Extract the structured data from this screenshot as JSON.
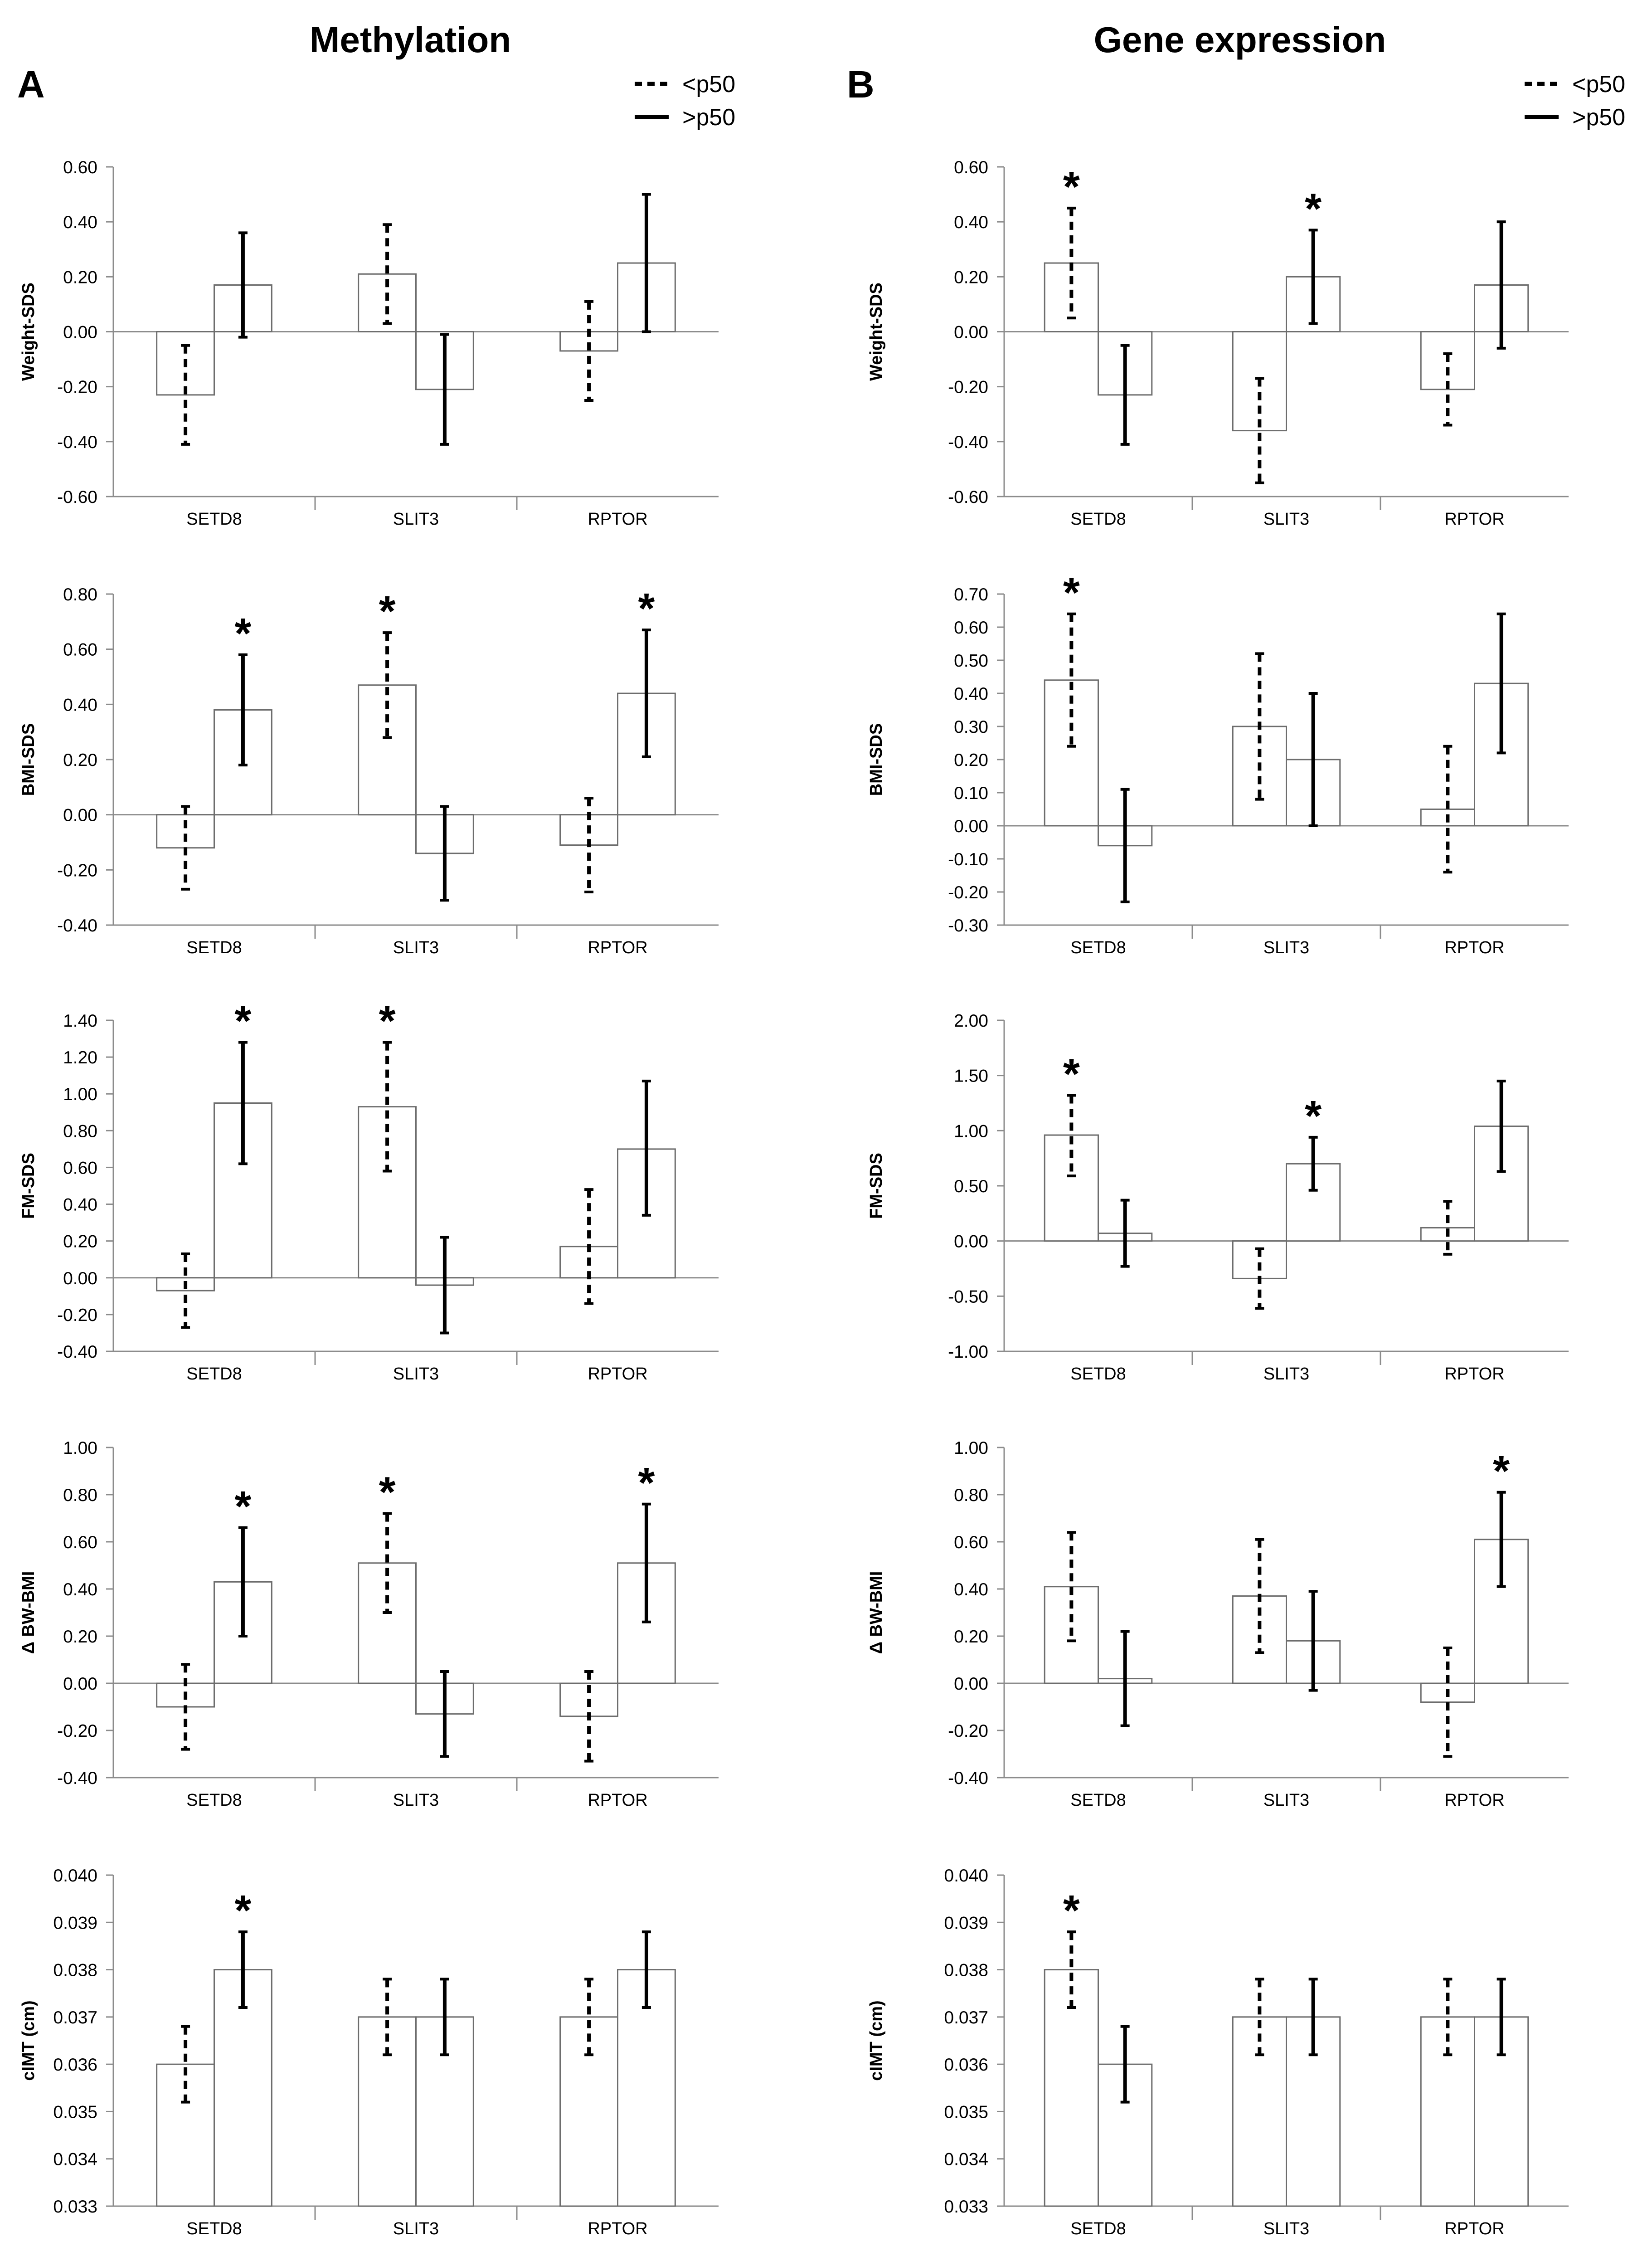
{
  "figure": {
    "columns": [
      {
        "letter": "A",
        "title": "Methylation"
      },
      {
        "letter": "B",
        "title": "Gene expression"
      }
    ],
    "legend": {
      "below": "<p50",
      "above": ">p50"
    },
    "significance_marker": "*"
  },
  "chart_data": [
    {
      "type": "bar",
      "panel": "A",
      "row": 1,
      "ylabel": "Weight-SDS",
      "categories": [
        "SETD8",
        "SLIT3",
        "RPTOR"
      ],
      "ylim": [
        -0.6,
        0.6
      ],
      "ytick_step": 0.2,
      "ytick_decimals": 2,
      "yticks": [
        "0.60",
        "0.40",
        "0.20",
        "0.00",
        "-0.20",
        "-0.40",
        "-0.60"
      ],
      "series": [
        {
          "name": "<p50",
          "style": "dashed",
          "values": [
            -0.23,
            0.21,
            -0.07
          ],
          "error_low": [
            -0.41,
            0.03,
            -0.25
          ],
          "error_high": [
            -0.05,
            0.39,
            0.11
          ],
          "significant": [
            false,
            false,
            false
          ]
        },
        {
          "name": ">p50",
          "style": "solid",
          "values": [
            0.17,
            -0.21,
            0.25
          ],
          "error_low": [
            -0.02,
            -0.41,
            0.0
          ],
          "error_high": [
            0.36,
            -0.01,
            0.5
          ],
          "significant": [
            false,
            false,
            false
          ]
        }
      ]
    },
    {
      "type": "bar",
      "panel": "B",
      "row": 1,
      "ylabel": "Weight-SDS",
      "categories": [
        "SETD8",
        "SLIT3",
        "RPTOR"
      ],
      "ylim": [
        -0.6,
        0.6
      ],
      "ytick_step": 0.2,
      "ytick_decimals": 2,
      "yticks": [
        "0.60",
        "0.40",
        "0.20",
        "0.00",
        "-0.20",
        "-0.40",
        "-0.60"
      ],
      "series": [
        {
          "name": "<p50",
          "style": "dashed",
          "values": [
            0.25,
            -0.36,
            -0.21
          ],
          "error_low": [
            0.05,
            -0.55,
            -0.34
          ],
          "error_high": [
            0.45,
            -0.17,
            -0.08
          ],
          "significant": [
            true,
            false,
            false
          ]
        },
        {
          "name": ">p50",
          "style": "solid",
          "values": [
            -0.23,
            0.2,
            0.17
          ],
          "error_low": [
            -0.41,
            0.03,
            -0.06
          ],
          "error_high": [
            -0.05,
            0.37,
            0.4
          ],
          "significant": [
            false,
            true,
            false
          ]
        }
      ]
    },
    {
      "type": "bar",
      "panel": "A",
      "row": 2,
      "ylabel": "BMI-SDS",
      "categories": [
        "SETD8",
        "SLIT3",
        "RPTOR"
      ],
      "ylim": [
        -0.4,
        0.8
      ],
      "ytick_step": 0.2,
      "ytick_decimals": 2,
      "yticks": [
        "0.80",
        "0.60",
        "0.40",
        "0.20",
        "0.00",
        "-0.20",
        "-0.40"
      ],
      "series": [
        {
          "name": "<p50",
          "style": "dashed",
          "values": [
            -0.12,
            0.47,
            -0.11
          ],
          "error_low": [
            -0.27,
            0.28,
            -0.28
          ],
          "error_high": [
            0.03,
            0.66,
            0.06
          ],
          "significant": [
            false,
            true,
            false
          ]
        },
        {
          "name": ">p50",
          "style": "solid",
          "values": [
            0.38,
            -0.14,
            0.44
          ],
          "error_low": [
            0.18,
            -0.31,
            0.21
          ],
          "error_high": [
            0.58,
            0.03,
            0.67
          ],
          "significant": [
            true,
            false,
            true
          ]
        }
      ]
    },
    {
      "type": "bar",
      "panel": "B",
      "row": 2,
      "ylabel": "BMI-SDS",
      "categories": [
        "SETD8",
        "SLIT3",
        "RPTOR"
      ],
      "ylim": [
        -0.3,
        0.7
      ],
      "ytick_step": 0.1,
      "ytick_decimals": 2,
      "yticks": [
        "0.70",
        "0.60",
        "0.50",
        "0.40",
        "0.30",
        "0.20",
        "0.10",
        "0.00",
        "-0.10",
        "-0.20",
        "-0.30"
      ],
      "series": [
        {
          "name": "<p50",
          "style": "dashed",
          "values": [
            0.44,
            0.3,
            0.05
          ],
          "error_low": [
            0.24,
            0.08,
            -0.14
          ],
          "error_high": [
            0.64,
            0.52,
            0.24
          ],
          "significant": [
            true,
            false,
            false
          ]
        },
        {
          "name": ">p50",
          "style": "solid",
          "values": [
            -0.06,
            0.2,
            0.43
          ],
          "error_low": [
            -0.23,
            0.0,
            0.22
          ],
          "error_high": [
            0.11,
            0.4,
            0.64
          ],
          "significant": [
            false,
            false,
            false
          ]
        }
      ]
    },
    {
      "type": "bar",
      "panel": "A",
      "row": 3,
      "ylabel": "FM-SDS",
      "categories": [
        "SETD8",
        "SLIT3",
        "RPTOR"
      ],
      "ylim": [
        -0.4,
        1.4
      ],
      "ytick_step": 0.2,
      "ytick_decimals": 2,
      "yticks": [
        "1.40",
        "1.20",
        "1.00",
        "0.80",
        "0.60",
        "0.40",
        "0.20",
        "0.00",
        "-0.20",
        "-0.40"
      ],
      "series": [
        {
          "name": "<p50",
          "style": "dashed",
          "values": [
            -0.07,
            0.93,
            0.17
          ],
          "error_low": [
            -0.27,
            0.58,
            -0.14
          ],
          "error_high": [
            0.13,
            1.28,
            0.48
          ],
          "significant": [
            false,
            true,
            false
          ]
        },
        {
          "name": ">p50",
          "style": "solid",
          "values": [
            0.95,
            -0.04,
            0.7
          ],
          "error_low": [
            0.62,
            -0.3,
            0.34
          ],
          "error_high": [
            1.28,
            0.22,
            1.07
          ],
          "significant": [
            true,
            false,
            false
          ]
        }
      ]
    },
    {
      "type": "bar",
      "panel": "B",
      "row": 3,
      "ylabel": "FM-SDS",
      "categories": [
        "SETD8",
        "SLIT3",
        "RPTOR"
      ],
      "ylim": [
        -1.0,
        2.0
      ],
      "ytick_step": 0.5,
      "ytick_decimals": 2,
      "yticks": [
        "2.00",
        "1.50",
        "1.00",
        "0.50",
        "0.00",
        "-0.50",
        "-1.00"
      ],
      "series": [
        {
          "name": "<p50",
          "style": "dashed",
          "values": [
            0.96,
            -0.34,
            0.12
          ],
          "error_low": [
            0.59,
            -0.61,
            -0.12
          ],
          "error_high": [
            1.32,
            -0.07,
            0.36
          ],
          "significant": [
            true,
            false,
            false
          ]
        },
        {
          "name": ">p50",
          "style": "solid",
          "values": [
            0.07,
            0.7,
            1.04
          ],
          "error_low": [
            -0.23,
            0.46,
            0.63
          ],
          "error_high": [
            0.37,
            0.94,
            1.45
          ],
          "significant": [
            false,
            true,
            false
          ]
        }
      ]
    },
    {
      "type": "bar",
      "panel": "A",
      "row": 4,
      "ylabel": "Δ BW-BMI",
      "categories": [
        "SETD8",
        "SLIT3",
        "RPTOR"
      ],
      "ylim": [
        -0.4,
        1.0
      ],
      "ytick_step": 0.2,
      "ytick_decimals": 2,
      "yticks": [
        "1.00",
        "0.80",
        "0.60",
        "0.40",
        "0.20",
        "0.00",
        "-0.20",
        "-0.40"
      ],
      "series": [
        {
          "name": "<p50",
          "style": "dashed",
          "values": [
            -0.1,
            0.51,
            -0.14
          ],
          "error_low": [
            -0.28,
            0.3,
            -0.33
          ],
          "error_high": [
            0.08,
            0.72,
            0.05
          ],
          "significant": [
            false,
            true,
            false
          ]
        },
        {
          "name": ">p50",
          "style": "solid",
          "values": [
            0.43,
            -0.13,
            0.51
          ],
          "error_low": [
            0.2,
            -0.31,
            0.26
          ],
          "error_high": [
            0.66,
            0.05,
            0.76
          ],
          "significant": [
            true,
            false,
            true
          ]
        }
      ]
    },
    {
      "type": "bar",
      "panel": "B",
      "row": 4,
      "ylabel": "Δ BW-BMI",
      "categories": [
        "SETD8",
        "SLIT3",
        "RPTOR"
      ],
      "ylim": [
        -0.4,
        1.0
      ],
      "ytick_step": 0.2,
      "ytick_decimals": 2,
      "yticks": [
        "1.00",
        "0.80",
        "0.60",
        "0.40",
        "0.20",
        "0.00",
        "-0.20",
        "-0.40"
      ],
      "series": [
        {
          "name": "<p50",
          "style": "dashed",
          "values": [
            0.41,
            0.37,
            -0.08
          ],
          "error_low": [
            0.18,
            0.13,
            -0.31
          ],
          "error_high": [
            0.64,
            0.61,
            0.15
          ],
          "significant": [
            false,
            false,
            false
          ]
        },
        {
          "name": ">p50",
          "style": "solid",
          "values": [
            0.02,
            0.18,
            0.61
          ],
          "error_low": [
            -0.18,
            -0.03,
            0.41
          ],
          "error_high": [
            0.22,
            0.39,
            0.81
          ],
          "significant": [
            false,
            false,
            true
          ]
        }
      ]
    },
    {
      "type": "bar",
      "panel": "A",
      "row": 5,
      "ylabel": "cIMT (cm)",
      "categories": [
        "SETD8",
        "SLIT3",
        "RPTOR"
      ],
      "ylim": [
        0.033,
        0.04
      ],
      "ytick_step": 0.001,
      "ytick_decimals": 3,
      "yticks": [
        "0.040",
        "0.039",
        "0.038",
        "0.037",
        "0.036",
        "0.035",
        "0.034",
        "0.033"
      ],
      "series": [
        {
          "name": "<p50",
          "style": "dashed",
          "values": [
            0.036,
            0.037,
            0.037
          ],
          "error_low": [
            0.0352,
            0.0362,
            0.0362
          ],
          "error_high": [
            0.0368,
            0.0378,
            0.0378
          ],
          "significant": [
            false,
            false,
            false
          ]
        },
        {
          "name": ">p50",
          "style": "solid",
          "values": [
            0.038,
            0.037,
            0.038
          ],
          "error_low": [
            0.0372,
            0.0362,
            0.0372
          ],
          "error_high": [
            0.0388,
            0.0378,
            0.0388
          ],
          "significant": [
            true,
            false,
            false
          ]
        }
      ]
    },
    {
      "type": "bar",
      "panel": "B",
      "row": 5,
      "ylabel": "cIMT (cm)",
      "categories": [
        "SETD8",
        "SLIT3",
        "RPTOR"
      ],
      "ylim": [
        0.033,
        0.04
      ],
      "ytick_step": 0.001,
      "ytick_decimals": 3,
      "yticks": [
        "0.040",
        "0.039",
        "0.038",
        "0.037",
        "0.036",
        "0.035",
        "0.034",
        "0.033"
      ],
      "series": [
        {
          "name": "<p50",
          "style": "dashed",
          "values": [
            0.038,
            0.037,
            0.037
          ],
          "error_low": [
            0.0372,
            0.0362,
            0.0362
          ],
          "error_high": [
            0.0388,
            0.0378,
            0.0378
          ],
          "significant": [
            true,
            false,
            false
          ]
        },
        {
          "name": ">p50",
          "style": "solid",
          "values": [
            0.036,
            0.037,
            0.037
          ],
          "error_low": [
            0.0352,
            0.0362,
            0.0362
          ],
          "error_high": [
            0.0368,
            0.0378,
            0.0378
          ],
          "significant": [
            false,
            false,
            false
          ]
        }
      ]
    }
  ]
}
